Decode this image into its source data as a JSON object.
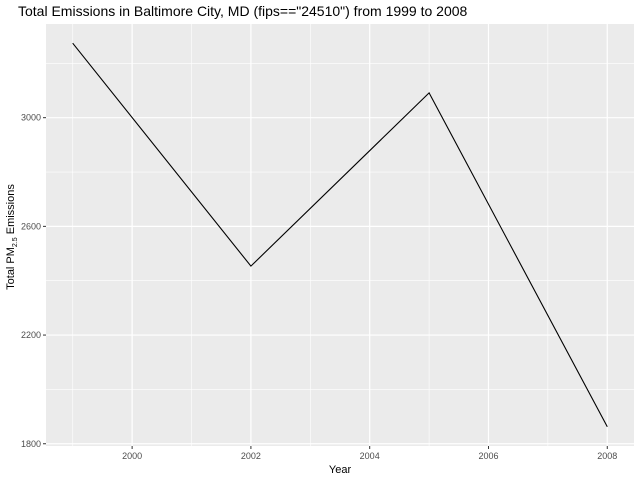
{
  "chart_data": {
    "type": "line",
    "title": "Total Emissions in Baltimore City, MD (fips==\"24510\") from 1999 to 2008",
    "xlabel": "Year",
    "ylabel_main": "Total PM",
    "ylabel_sub": "2.5",
    "ylabel_end": " Emissions",
    "x": [
      1999,
      2002,
      2005,
      2008
    ],
    "y": [
      3274.18,
      2453.92,
      3091.35,
      1862.28
    ],
    "xlim": [
      1998.55,
      2008.45
    ],
    "ylim": [
      1791.72,
      3344.74
    ],
    "x_ticks": [
      2000,
      2002,
      2004,
      2006,
      2008
    ],
    "x_tick_labels": [
      "2000",
      "2002",
      "2004",
      "2006",
      "2008"
    ],
    "y_ticks": [
      1800,
      2200,
      2600,
      3000
    ],
    "y_tick_labels": [
      "1800",
      "2200",
      "2600",
      "3000"
    ],
    "grid": true,
    "legend": "none",
    "colors": {
      "panel": "#ebebeb",
      "grid": "#ffffff",
      "line": "#000000"
    }
  }
}
